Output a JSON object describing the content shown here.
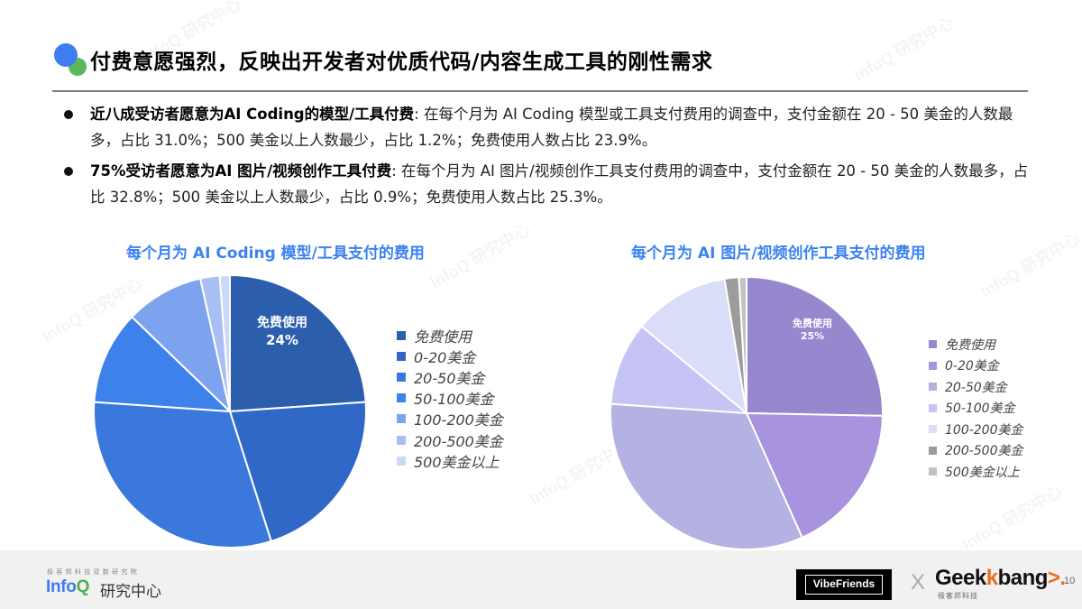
{
  "header": {
    "title": "付费意愿强烈，反映出开发者对优质代码/内容生成工具的刚性需求",
    "logo_colors": {
      "blue": "#3e7cf0",
      "green": "#5cb85c"
    }
  },
  "bullets": [
    {
      "lead": "近八成受访者愿意为AI Coding的模型/工具付费",
      "text": ": 在每个月为 AI Coding 模型或工具支付费用的调查中，支付金额在 20 - 50 美金的人数最多，占比 31.0%；500 美金以上人数最少，占比 1.2%；免费使用人数占比 23.9%。"
    },
    {
      "lead": "75%受访者愿意为AI 图片/视频创作工具付费",
      "text": ": 在每个月为 AI 图片/视频创作工具支付费用的调查中，支付金额在 20 - 50 美金的人数最多，占比 32.8%；500 美金以上人数最少，占比 0.9%；免费使用人数占比 25.3%。"
    }
  ],
  "chart_data": [
    {
      "type": "pie",
      "title": "每个月为 AI Coding 模型/工具支付的费用",
      "categories": [
        "免费使用",
        "0-20美金",
        "20-50美金",
        "50-100美金",
        "100-200美金",
        "200-500美金",
        "500美金以上"
      ],
      "values": [
        23.9,
        21.2,
        31.0,
        11.1,
        9.3,
        2.3,
        1.2
      ],
      "colors": [
        "#2c5eae",
        "#3068c8",
        "#3b78db",
        "#3d82ea",
        "#7ea3ee",
        "#a9bff3",
        "#ccd8f7"
      ],
      "data_labels": [
        {
          "category": "免费使用",
          "label": "免费使用",
          "value_label": "24%"
        }
      ],
      "start_angle": 0,
      "direction": "clockwise",
      "legend_position": "right"
    },
    {
      "type": "pie",
      "title": "每个月为 AI 图片/视频创作工具支付的费用",
      "categories": [
        "免费使用",
        "0-20美金",
        "20-50美金",
        "50-100美金",
        "100-200美金",
        "200-500美金",
        "500美金以上"
      ],
      "values": [
        25.3,
        18.0,
        32.8,
        9.9,
        11.4,
        1.7,
        0.9
      ],
      "colors": [
        "#9787cf",
        "#a893de",
        "#b3b2e2",
        "#c6c3f5",
        "#d9ddf8",
        "#9c9c9c",
        "#c2c2c2"
      ],
      "data_labels": [
        {
          "category": "免费使用",
          "label": "免费使用",
          "value_label": "25%"
        }
      ],
      "start_angle": 0,
      "direction": "clockwise",
      "legend_position": "right"
    }
  ],
  "footer": {
    "infoq_subtitle": "极客邦科技双数研究院",
    "infoq_brand": "Info",
    "infoq_brand_q": "Q",
    "infoq_cn": "研究中心",
    "vibefriends": "VibeFriends",
    "x_mark": "X",
    "geekbang_main": "Geek",
    "geekbang_k": "k",
    "geekbang_rest": "bang",
    "geekbang_accent": ">.",
    "geekbang_sub": "极客邦科技",
    "page_number": "10"
  },
  "watermark": "InfoQ 研究中心"
}
